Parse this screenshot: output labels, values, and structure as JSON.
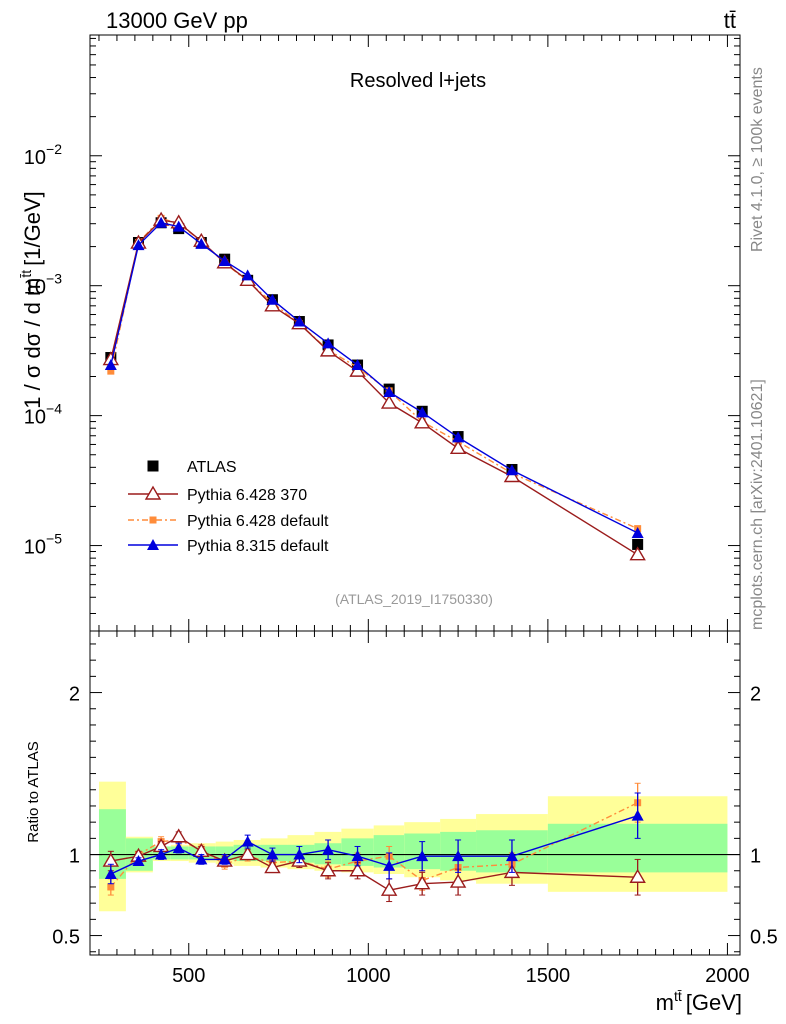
{
  "header": {
    "energy": "13000 GeV pp",
    "process": "tt̄",
    "side_version": "Rivet 4.1.0, ≥ 100k events",
    "side_source": "mcplots.cern.ch [arXiv:2401.10621]"
  },
  "colors": {
    "atlas": "#000000",
    "py6_370": "#9b1c1c",
    "py6_default": "#ff8c3a",
    "py8_default": "#0000dd",
    "band_inner": "#99ff99",
    "band_outer": "#ffff99"
  },
  "chart_data": [
    {
      "type": "line",
      "title": "Resolved l+jets",
      "analysis_id": "(ATLAS_2019_I1750330)",
      "ylabel_main": "1 / σ dσ / d m",
      "ylabel_sup": "t̄t",
      "ylabel_unit": "[1/GeV]",
      "yscale": "log",
      "ylim": [
        2.2e-06,
        0.085
      ],
      "xlim": [
        225,
        2035
      ],
      "ytick_labels": [
        {
          "base": "10",
          "exp": "−5",
          "value": 1e-05
        },
        {
          "base": "10",
          "exp": "−4",
          "value": 0.0001
        },
        {
          "base": "10",
          "exp": "−3",
          "value": 0.001
        },
        {
          "base": "10",
          "exp": "−2",
          "value": 0.01
        }
      ],
      "x": [
        283,
        360,
        423,
        472,
        535,
        600,
        664,
        733,
        808,
        888,
        970,
        1058,
        1150,
        1250,
        1400,
        1750
      ],
      "series": [
        {
          "name": "ATLAS",
          "marker": "square",
          "values": [
            0.00028,
            0.00215,
            0.00305,
            0.00275,
            0.00215,
            0.0016,
            0.0011,
            0.00078,
            0.00053,
            0.00035,
            0.000245,
            0.00016,
            0.000108,
            6.9e-05,
            3.85e-05,
            1.02e-05
          ]
        },
        {
          "name": "Pythia 6.428 370",
          "marker": "open-triangle",
          "values": [
            0.00027,
            0.00213,
            0.0032,
            0.00305,
            0.0022,
            0.0015,
            0.0011,
            0.0007,
            0.00051,
            0.000315,
            0.00022,
            0.000125,
            8.8e-05,
            5.6e-05,
            3.4e-05,
            8.5e-06
          ]
        },
        {
          "name": "Pythia 6.428 default",
          "marker": "small-square",
          "values": [
            0.00022,
            0.00215,
            0.0033,
            0.003,
            0.0022,
            0.0015,
            0.00108,
            0.00074,
            0.00051,
            0.00032,
            0.000235,
            0.000155,
            9e-05,
            6.3e-05,
            3.6e-05,
            1.35e-05
          ]
        },
        {
          "name": "Pythia 8.315 default",
          "marker": "triangle",
          "values": [
            0.000245,
            0.00205,
            0.00305,
            0.00285,
            0.0021,
            0.00155,
            0.0012,
            0.00078,
            0.00053,
            0.00036,
            0.000245,
            0.000152,
            0.000106,
            6.8e-05,
            3.8e-05,
            1.25e-05
          ]
        }
      ]
    },
    {
      "type": "line",
      "ylabel": "Ratio to ATLAS",
      "xlabel_main": "m",
      "xlabel_sup": "tt̄",
      "xlabel_unit": "[GeV]",
      "ylim": [
        0.38,
        2.38
      ],
      "xlim": [
        225,
        2035
      ],
      "xtick_labels": [
        "500",
        "1000",
        "1500",
        "2000"
      ],
      "xtick_values": [
        500,
        1000,
        1500,
        2000
      ],
      "ytick_labels": [
        "0.5",
        "1",
        "2"
      ],
      "ytick_values": [
        0.5,
        1,
        2
      ],
      "bin_edges": [
        250,
        325,
        400,
        450,
        500,
        575,
        625,
        700,
        775,
        850,
        925,
        1015,
        1100,
        1200,
        1300,
        1500,
        2000
      ],
      "band_inner": [
        [
          0.85,
          1.28
        ],
        [
          0.9,
          1.1
        ],
        [
          0.97,
          1.05
        ],
        [
          0.97,
          1.05
        ],
        [
          0.97,
          1.05
        ],
        [
          0.97,
          1.05
        ],
        [
          0.96,
          1.06
        ],
        [
          0.96,
          1.06
        ],
        [
          0.95,
          1.06
        ],
        [
          0.94,
          1.07
        ],
        [
          0.93,
          1.1
        ],
        [
          0.92,
          1.12
        ],
        [
          0.91,
          1.13
        ],
        [
          0.9,
          1.14
        ],
        [
          0.89,
          1.15
        ],
        [
          0.89,
          1.19
        ]
      ],
      "band_outer": [
        [
          0.65,
          1.45
        ],
        [
          0.89,
          1.11
        ],
        [
          0.96,
          1.05
        ],
        [
          0.96,
          1.06
        ],
        [
          0.95,
          1.07
        ],
        [
          0.94,
          1.08
        ],
        [
          0.93,
          1.09
        ],
        [
          0.92,
          1.1
        ],
        [
          0.91,
          1.12
        ],
        [
          0.9,
          1.14
        ],
        [
          0.89,
          1.16
        ],
        [
          0.88,
          1.18
        ],
        [
          0.86,
          1.2
        ],
        [
          0.84,
          1.22
        ],
        [
          0.82,
          1.25
        ],
        [
          0.77,
          1.36
        ]
      ],
      "x": [
        283,
        360,
        423,
        472,
        535,
        600,
        664,
        733,
        808,
        888,
        970,
        1058,
        1150,
        1250,
        1400,
        1750
      ],
      "series": [
        {
          "name": "Pythia 6.428 370",
          "values": [
            0.96,
            0.99,
            1.05,
            1.11,
            1.02,
            0.96,
            1.0,
            0.92,
            0.96,
            0.9,
            0.9,
            0.78,
            0.82,
            0.83,
            0.89,
            0.86
          ],
          "errors": [
            0.06,
            0.03,
            0.03,
            0.03,
            0.03,
            0.03,
            0.03,
            0.03,
            0.04,
            0.05,
            0.05,
            0.07,
            0.07,
            0.08,
            0.08,
            0.11
          ]
        },
        {
          "name": "Pythia 6.428 default",
          "values": [
            0.8,
            1.0,
            1.08,
            1.09,
            1.03,
            0.94,
            0.99,
            0.95,
            0.96,
            0.91,
            0.96,
            0.99,
            0.84,
            0.92,
            0.94,
            1.32
          ],
          "errors": [
            0.05,
            0.02,
            0.03,
            0.03,
            0.03,
            0.03,
            0.03,
            0.03,
            0.04,
            0.05,
            0.05,
            0.06,
            0.06,
            0.07,
            0.07,
            0.12
          ]
        },
        {
          "name": "Pythia 8.315 default",
          "values": [
            0.88,
            0.96,
            1.0,
            1.04,
            0.97,
            0.97,
            1.08,
            1.0,
            1.0,
            1.03,
            0.99,
            0.93,
            0.99,
            0.99,
            0.99,
            1.24
          ],
          "errors": [
            0.06,
            0.02,
            0.03,
            0.03,
            0.03,
            0.03,
            0.04,
            0.04,
            0.05,
            0.06,
            0.06,
            0.08,
            0.09,
            0.1,
            0.1,
            0.14
          ]
        }
      ]
    }
  ]
}
